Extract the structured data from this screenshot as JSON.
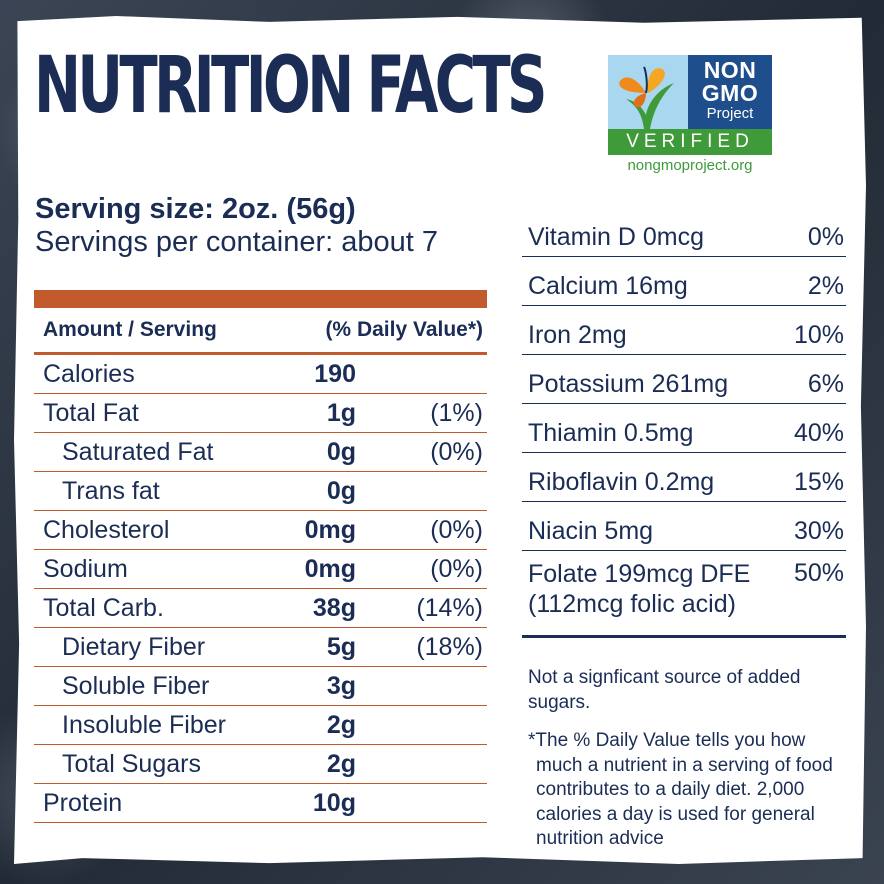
{
  "title": "NUTRITION FACTS",
  "logo": {
    "line1": "NON",
    "line2": "GMO",
    "line3": "Project",
    "verified": "VERIFIED",
    "url": "nongmoproject.org",
    "icon": "butterfly-icon"
  },
  "serving": {
    "size": "Serving size: 2oz. (56g)",
    "per_container": "Servings per container: about 7"
  },
  "table": {
    "header_left": "Amount / Serving",
    "header_right": "(% Daily Value*)",
    "rows": [
      {
        "name": "Calories",
        "amount": "190",
        "dv": ""
      },
      {
        "name": "Total Fat",
        "amount": "1g",
        "dv": "(1%)"
      },
      {
        "name": "Saturated Fat",
        "amount": "0g",
        "dv": "(0%)"
      },
      {
        "name": "Trans fat",
        "amount": "0g",
        "dv": ""
      },
      {
        "name": "Cholesterol",
        "amount": "0mg",
        "dv": "(0%)"
      },
      {
        "name": "Sodium",
        "amount": "0mg",
        "dv": "(0%)"
      },
      {
        "name": "Total Carb.",
        "amount": "38g",
        "dv": "(14%)"
      },
      {
        "name": "Dietary Fiber",
        "amount": "5g",
        "dv": "(18%)"
      },
      {
        "name": "Soluble Fiber",
        "amount": "3g",
        "dv": ""
      },
      {
        "name": "Insoluble Fiber",
        "amount": "2g",
        "dv": ""
      },
      {
        "name": "Total Sugars",
        "amount": "2g",
        "dv": ""
      },
      {
        "name": "Protein",
        "amount": "10g",
        "dv": ""
      }
    ]
  },
  "vitamins": [
    {
      "name": "Vitamin D 0mcg",
      "dv": "0%"
    },
    {
      "name": "Calcium 16mg",
      "dv": "2%"
    },
    {
      "name": "Iron 2mg",
      "dv": "10%"
    },
    {
      "name": "Potassium 261mg",
      "dv": "6%"
    },
    {
      "name": "Thiamin 0.5mg",
      "dv": "40%"
    },
    {
      "name": "Riboflavin 0.2mg",
      "dv": "15%"
    },
    {
      "name": "Niacin 5mg",
      "dv": "30%"
    },
    {
      "name": "Folate 199mcg DFE (112mcg folic acid)",
      "dv": "50%"
    }
  ],
  "notes": {
    "added_sugars": "Not a signficant source of added sugars.",
    "daily_value": "*The % Daily Value tells you how much a nutrient in a serving of food contributes to a daily diet. 2,000 calories a day is used for general nutrition advice"
  },
  "colors": {
    "navy": "#1b2d55",
    "orange": "#c15a2c",
    "green": "#3f9a3a"
  }
}
